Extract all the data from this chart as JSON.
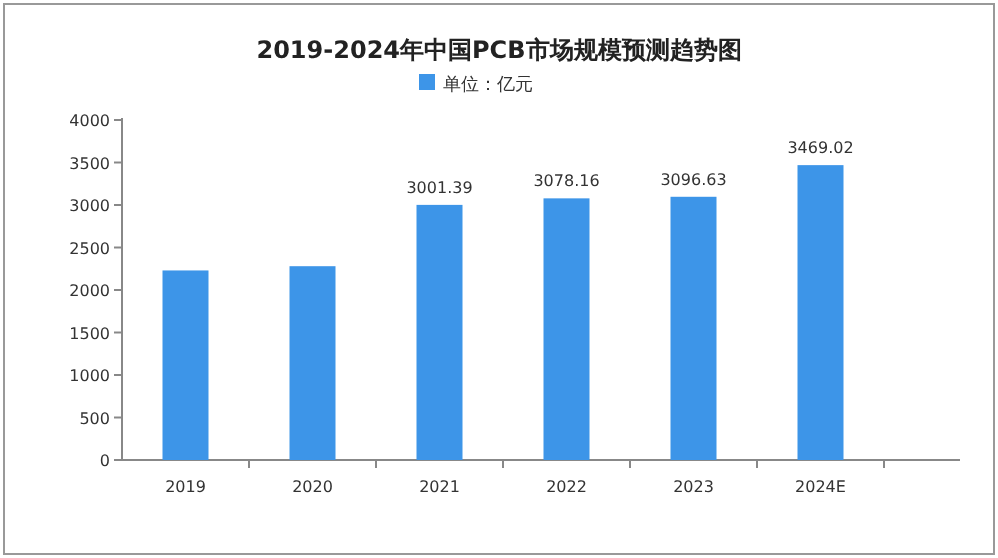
{
  "chart_data": {
    "type": "bar",
    "title": "2019-2024年中国PCB市场规模预测趋势图",
    "categories": [
      "2019",
      "2020",
      "2021",
      "2022",
      "2023",
      "2024E"
    ],
    "series": [
      {
        "name": "单位：亿元",
        "color": "#3d95e8",
        "values": [
          2230,
          2280,
          3001.39,
          3078.16,
          3096.63,
          3469.02
        ],
        "value_labels": [
          null,
          null,
          "3001.39",
          "3078.16",
          "3096.63",
          "3469.02"
        ]
      }
    ],
    "ylim": [
      0,
      4000
    ],
    "yticks": [
      0,
      500,
      1000,
      1500,
      2000,
      2500,
      3000,
      3500,
      4000
    ],
    "grid": false,
    "legend": "top"
  }
}
